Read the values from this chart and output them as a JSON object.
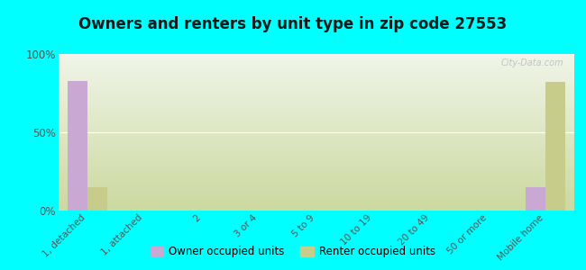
{
  "title": "Owners and renters by unit type in zip code 27553",
  "categories": [
    "1, detached",
    "1, attached",
    "2",
    "3 or 4",
    "5 to 9",
    "10 to 19",
    "20 to 49",
    "50 or more",
    "Mobile home"
  ],
  "owner_values": [
    83,
    0,
    0,
    0,
    0,
    0,
    0,
    0,
    15
  ],
  "renter_values": [
    15,
    0,
    0,
    0,
    0,
    0,
    0,
    0,
    82
  ],
  "owner_color": "#c9a9d4",
  "renter_color": "#c8cc8a",
  "background_color": "#00ffff",
  "gradient_bottom": "#ccd9a0",
  "gradient_top": "#f0f5e8",
  "ylim": [
    0,
    100
  ],
  "yticks": [
    0,
    50,
    100
  ],
  "ytick_labels": [
    "0%",
    "50%",
    "100%"
  ],
  "bar_width": 0.35,
  "legend_owner": "Owner occupied units",
  "legend_renter": "Renter occupied units",
  "watermark": "City-Data.com"
}
